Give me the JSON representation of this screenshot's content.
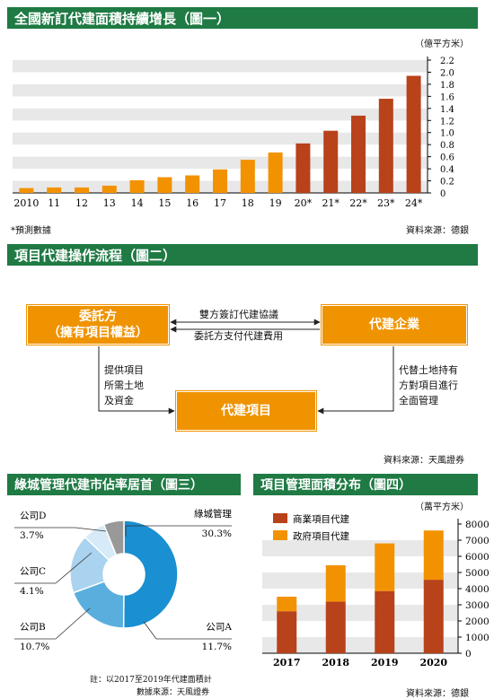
{
  "chart1": {
    "title": "全國新訂代建面積持續增長（圖一）",
    "unit": "（億平方米）",
    "footnote": "*預測數據",
    "source": "資料來源：德銀",
    "chart_data": {
      "type": "bar",
      "categories": [
        "2010",
        "11",
        "12",
        "13",
        "14",
        "15",
        "16",
        "17",
        "18",
        "19",
        "20*",
        "21*",
        "22*",
        "23*",
        "24*"
      ],
      "values": [
        0.08,
        0.09,
        0.09,
        0.12,
        0.21,
        0.26,
        0.29,
        0.39,
        0.55,
        0.67,
        0.82,
        1.03,
        1.28,
        1.56,
        1.94
      ],
      "colors": [
        "#f39200",
        "#f39200",
        "#f39200",
        "#f39200",
        "#f39200",
        "#f39200",
        "#f39200",
        "#f39200",
        "#f39200",
        "#f39200",
        "#b8421a",
        "#b8421a",
        "#b8421a",
        "#b8421a",
        "#b8421a"
      ],
      "yticks": [
        "0",
        "0.2",
        "0.4",
        "0.6",
        "0.8",
        "1.0",
        "1.2",
        "1.4",
        "1.6",
        "1.8",
        "2.0",
        "2.2"
      ],
      "ylim": [
        0,
        2.2
      ]
    }
  },
  "chart2": {
    "title": "項目代建操作流程（圖二）",
    "client_line1": "委託方",
    "client_line2": "（擁有項目權益）",
    "enterprise": "代建企業",
    "project": "代建項目",
    "top_arrow_label": "雙方簽訂代建協議",
    "bottom_arrow_label": "委託方支付代建費用",
    "left_label": [
      "提供項目",
      "所需土地",
      "及資金"
    ],
    "right_label": [
      "代替土地持有",
      "方對項目進行",
      "全面管理"
    ],
    "source": "資料來源：天風證券"
  },
  "chart3": {
    "title": "綠城管理代建市佔率居首（圖三）",
    "note": "註：以2017至2019年代建面積計",
    "source": "數據來源：天風證券",
    "chart_data": {
      "type": "pie",
      "labels": [
        "綠城管理",
        "公司A",
        "公司B",
        "公司C",
        "公司D"
      ],
      "values": [
        30.3,
        11.7,
        10.7,
        4.1,
        3.7
      ],
      "value_labels": [
        "30.3%",
        "11.7%",
        "10.7%",
        "4.1%",
        "3.7%"
      ],
      "colors": [
        "#1a8fd1",
        "#5aaede",
        "#a9d3ef",
        "#d6eaf7",
        "#999999"
      ]
    }
  },
  "chart4": {
    "title": "項目管理面積分布（圖四）",
    "unit": "（萬平方米）",
    "source": "資料來源：德銀",
    "chart_data": {
      "type": "bar",
      "stacked": true,
      "categories": [
        "2017",
        "2018",
        "2019",
        "2020"
      ],
      "series": [
        {
          "name": "商業項目代建",
          "values": [
            2600,
            3200,
            3850,
            4550
          ],
          "color": "#b8421a"
        },
        {
          "name": "政府項目代建",
          "values": [
            900,
            2250,
            2950,
            3050
          ],
          "color": "#f39200"
        }
      ],
      "yticks": [
        "0",
        "1000",
        "2000",
        "3000",
        "4000",
        "5000",
        "6000",
        "7000",
        "8000"
      ],
      "ylim": [
        0,
        8000
      ]
    }
  }
}
